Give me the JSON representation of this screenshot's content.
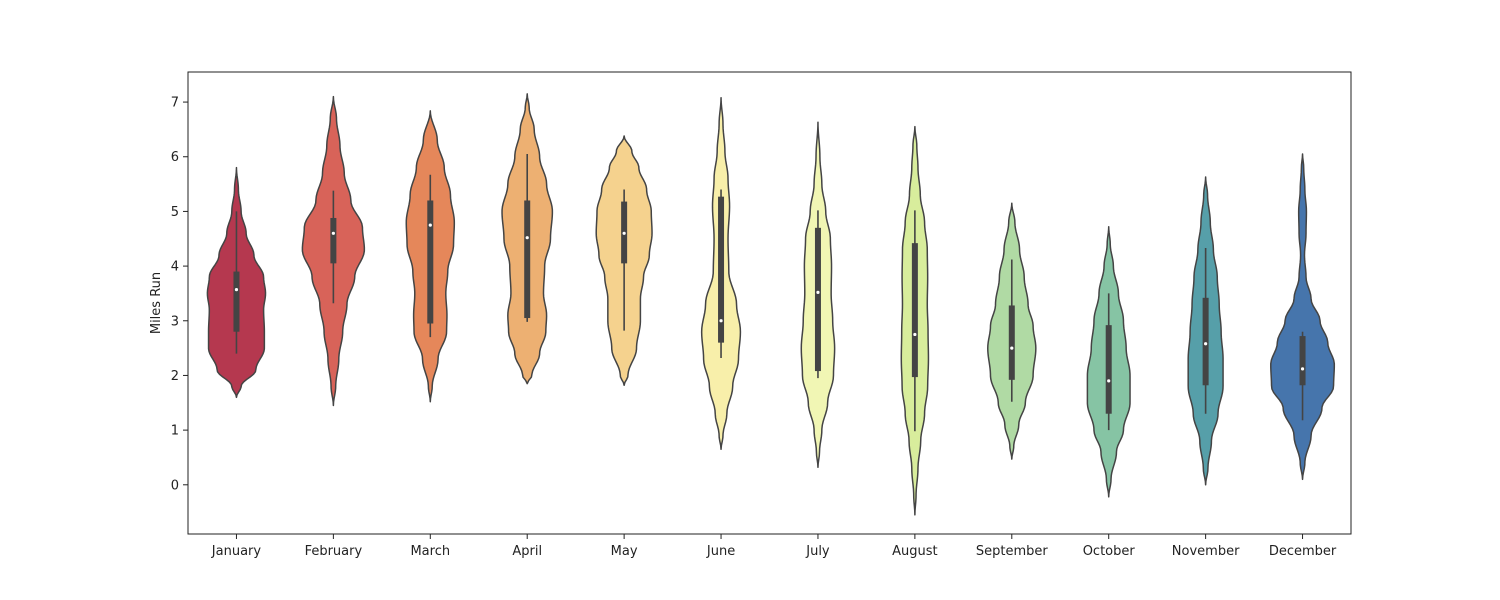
{
  "chart_data": {
    "type": "violin",
    "title": "",
    "xlabel": "",
    "ylabel": "Miles Run",
    "ylim": [
      -0.9,
      7.55
    ],
    "yticks": [
      0,
      1,
      2,
      3,
      4,
      5,
      6,
      7
    ],
    "grid": false,
    "legend": "none",
    "categories": [
      "January",
      "February",
      "March",
      "April",
      "May",
      "June",
      "July",
      "August",
      "September",
      "October",
      "November",
      "December"
    ],
    "colors": [
      "#b5384f",
      "#d86359",
      "#e5875a",
      "#edb072",
      "#f5d28e",
      "#f8efaa",
      "#f1f6b4",
      "#d8ed9c",
      "#b0daa4",
      "#86c4a4",
      "#569fa9",
      "#4675ac"
    ],
    "violins": [
      {
        "median": 3.57,
        "q1": 2.8,
        "q3": 3.9,
        "whisker_low": 2.4,
        "whisker_high": 5.0,
        "range": [
          1.6,
          5.8
        ],
        "profile": [
          [
            1.6,
            0
          ],
          [
            1.8,
            0.12
          ],
          [
            2.1,
            0.5
          ],
          [
            2.5,
            0.72
          ],
          [
            2.8,
            0.72
          ],
          [
            3.2,
            0.7
          ],
          [
            3.5,
            0.75
          ],
          [
            3.8,
            0.7
          ],
          [
            4.2,
            0.45
          ],
          [
            4.6,
            0.25
          ],
          [
            5.0,
            0.12
          ],
          [
            5.4,
            0.05
          ],
          [
            5.8,
            0
          ]
        ]
      },
      {
        "median": 4.6,
        "q1": 4.05,
        "q3": 4.88,
        "whisker_low": 3.32,
        "whisker_high": 5.38,
        "range": [
          1.45,
          7.1
        ],
        "profile": [
          [
            1.45,
            0
          ],
          [
            1.8,
            0.06
          ],
          [
            2.3,
            0.14
          ],
          [
            2.8,
            0.24
          ],
          [
            3.3,
            0.35
          ],
          [
            3.8,
            0.55
          ],
          [
            4.3,
            0.8
          ],
          [
            4.7,
            0.75
          ],
          [
            5.2,
            0.45
          ],
          [
            5.7,
            0.28
          ],
          [
            6.2,
            0.17
          ],
          [
            6.7,
            0.08
          ],
          [
            7.1,
            0
          ]
        ]
      },
      {
        "median": 4.75,
        "q1": 2.95,
        "q3": 5.2,
        "whisker_low": 2.7,
        "whisker_high": 5.67,
        "range": [
          1.52,
          6.84
        ],
        "profile": [
          [
            1.52,
            0
          ],
          [
            1.8,
            0.05
          ],
          [
            2.3,
            0.2
          ],
          [
            2.8,
            0.42
          ],
          [
            3.1,
            0.43
          ],
          [
            3.5,
            0.4
          ],
          [
            3.9,
            0.45
          ],
          [
            4.4,
            0.6
          ],
          [
            4.8,
            0.62
          ],
          [
            5.3,
            0.52
          ],
          [
            5.8,
            0.36
          ],
          [
            6.3,
            0.18
          ],
          [
            6.84,
            0
          ]
        ]
      },
      {
        "median": 4.52,
        "q1": 3.05,
        "q3": 5.2,
        "whisker_low": 2.98,
        "whisker_high": 6.05,
        "range": [
          1.85,
          7.15
        ],
        "profile": [
          [
            1.85,
            0
          ],
          [
            2.0,
            0.12
          ],
          [
            2.4,
            0.32
          ],
          [
            2.8,
            0.48
          ],
          [
            3.1,
            0.5
          ],
          [
            3.5,
            0.42
          ],
          [
            4.0,
            0.45
          ],
          [
            4.5,
            0.6
          ],
          [
            5.0,
            0.65
          ],
          [
            5.5,
            0.5
          ],
          [
            6.0,
            0.32
          ],
          [
            6.5,
            0.18
          ],
          [
            6.9,
            0.05
          ],
          [
            7.15,
            0
          ]
        ]
      },
      {
        "median": 4.6,
        "q1": 4.05,
        "q3": 5.18,
        "whisker_low": 2.82,
        "whisker_high": 5.4,
        "range": [
          1.82,
          6.38
        ],
        "profile": [
          [
            1.82,
            0
          ],
          [
            2.0,
            0.1
          ],
          [
            2.5,
            0.32
          ],
          [
            3.0,
            0.42
          ],
          [
            3.4,
            0.42
          ],
          [
            3.8,
            0.5
          ],
          [
            4.2,
            0.65
          ],
          [
            4.6,
            0.72
          ],
          [
            5.0,
            0.7
          ],
          [
            5.4,
            0.58
          ],
          [
            5.8,
            0.38
          ],
          [
            6.1,
            0.2
          ],
          [
            6.38,
            0
          ]
        ]
      },
      {
        "median": 3.0,
        "q1": 2.6,
        "q3": 5.27,
        "whisker_low": 2.32,
        "whisker_high": 5.4,
        "range": [
          0.65,
          7.08
        ],
        "profile": [
          [
            0.65,
            0
          ],
          [
            0.9,
            0.05
          ],
          [
            1.3,
            0.15
          ],
          [
            1.8,
            0.3
          ],
          [
            2.3,
            0.45
          ],
          [
            2.8,
            0.5
          ],
          [
            3.3,
            0.4
          ],
          [
            3.9,
            0.2
          ],
          [
            4.5,
            0.18
          ],
          [
            5.1,
            0.22
          ],
          [
            5.6,
            0.18
          ],
          [
            6.1,
            0.1
          ],
          [
            6.6,
            0.05
          ],
          [
            7.08,
            0
          ]
        ]
      },
      {
        "median": 3.52,
        "q1": 2.08,
        "q3": 4.7,
        "whisker_low": 1.95,
        "whisker_high": 5.02,
        "range": [
          0.32,
          6.63
        ],
        "profile": [
          [
            0.32,
            0
          ],
          [
            0.6,
            0.04
          ],
          [
            1.0,
            0.1
          ],
          [
            1.5,
            0.25
          ],
          [
            2.0,
            0.4
          ],
          [
            2.5,
            0.43
          ],
          [
            3.0,
            0.38
          ],
          [
            3.5,
            0.34
          ],
          [
            4.0,
            0.35
          ],
          [
            4.5,
            0.32
          ],
          [
            5.0,
            0.2
          ],
          [
            5.5,
            0.1
          ],
          [
            6.0,
            0.05
          ],
          [
            6.63,
            0
          ]
        ]
      },
      {
        "median": 2.75,
        "q1": 1.97,
        "q3": 4.42,
        "whisker_low": 0.98,
        "whisker_high": 5.02,
        "range": [
          -0.55,
          6.55
        ],
        "profile": [
          [
            -0.55,
            0
          ],
          [
            -0.2,
            0.03
          ],
          [
            0.3,
            0.08
          ],
          [
            0.8,
            0.15
          ],
          [
            1.3,
            0.25
          ],
          [
            1.8,
            0.33
          ],
          [
            2.3,
            0.35
          ],
          [
            2.8,
            0.34
          ],
          [
            3.3,
            0.32
          ],
          [
            3.8,
            0.33
          ],
          [
            4.3,
            0.32
          ],
          [
            4.8,
            0.25
          ],
          [
            5.3,
            0.14
          ],
          [
            5.8,
            0.08
          ],
          [
            6.2,
            0.05
          ],
          [
            6.55,
            0
          ]
        ]
      },
      {
        "median": 2.5,
        "q1": 1.92,
        "q3": 3.28,
        "whisker_low": 1.52,
        "whisker_high": 4.12,
        "range": [
          0.47,
          5.15
        ],
        "profile": [
          [
            0.47,
            0
          ],
          [
            0.7,
            0.05
          ],
          [
            1.1,
            0.18
          ],
          [
            1.5,
            0.35
          ],
          [
            2.0,
            0.55
          ],
          [
            2.5,
            0.62
          ],
          [
            2.9,
            0.55
          ],
          [
            3.3,
            0.42
          ],
          [
            3.8,
            0.32
          ],
          [
            4.3,
            0.2
          ],
          [
            4.8,
            0.08
          ],
          [
            5.15,
            0
          ]
        ]
      },
      {
        "median": 1.9,
        "q1": 1.3,
        "q3": 2.92,
        "whisker_low": 1.0,
        "whisker_high": 3.5,
        "range": [
          -0.22,
          4.72
        ],
        "profile": [
          [
            -0.22,
            0
          ],
          [
            0.1,
            0.06
          ],
          [
            0.6,
            0.2
          ],
          [
            1.0,
            0.38
          ],
          [
            1.5,
            0.55
          ],
          [
            2.0,
            0.55
          ],
          [
            2.5,
            0.45
          ],
          [
            3.0,
            0.38
          ],
          [
            3.5,
            0.25
          ],
          [
            4.0,
            0.12
          ],
          [
            4.4,
            0.04
          ],
          [
            4.72,
            0
          ]
        ]
      },
      {
        "median": 2.58,
        "q1": 1.82,
        "q3": 3.42,
        "whisker_low": 1.3,
        "whisker_high": 4.33,
        "range": [
          0.0,
          5.63
        ],
        "profile": [
          [
            0.0,
            0
          ],
          [
            0.3,
            0.06
          ],
          [
            0.8,
            0.15
          ],
          [
            1.3,
            0.32
          ],
          [
            1.8,
            0.45
          ],
          [
            2.3,
            0.45
          ],
          [
            2.8,
            0.4
          ],
          [
            3.3,
            0.35
          ],
          [
            3.8,
            0.3
          ],
          [
            4.3,
            0.2
          ],
          [
            4.8,
            0.12
          ],
          [
            5.3,
            0.05
          ],
          [
            5.63,
            0
          ]
        ]
      },
      {
        "median": 2.12,
        "q1": 1.82,
        "q3": 2.72,
        "whisker_low": 1.18,
        "whisker_high": 2.8,
        "range": [
          0.1,
          6.05
        ],
        "profile": [
          [
            0.1,
            0
          ],
          [
            0.4,
            0.06
          ],
          [
            0.9,
            0.22
          ],
          [
            1.4,
            0.5
          ],
          [
            1.8,
            0.8
          ],
          [
            2.2,
            0.82
          ],
          [
            2.6,
            0.65
          ],
          [
            3.0,
            0.45
          ],
          [
            3.4,
            0.22
          ],
          [
            3.8,
            0.09
          ],
          [
            4.2,
            0.05
          ],
          [
            4.6,
            0.09
          ],
          [
            5.0,
            0.1
          ],
          [
            5.4,
            0.06
          ],
          [
            5.8,
            0.03
          ],
          [
            6.05,
            0
          ]
        ]
      }
    ]
  }
}
